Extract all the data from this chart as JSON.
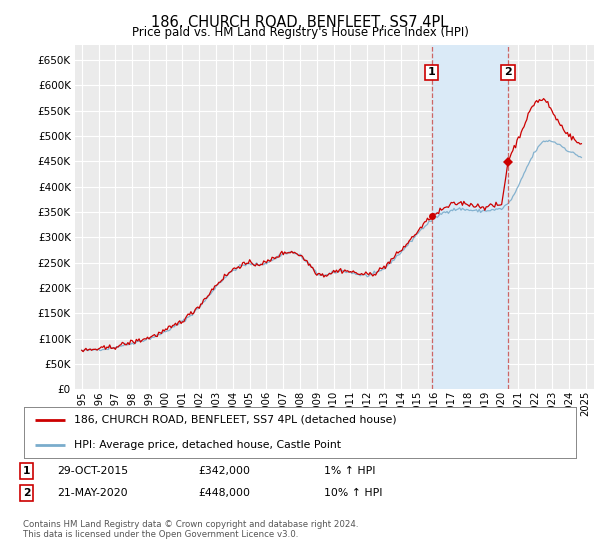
{
  "title": "186, CHURCH ROAD, BENFLEET, SS7 4PL",
  "subtitle": "Price paid vs. HM Land Registry's House Price Index (HPI)",
  "legend_label_red": "186, CHURCH ROAD, BENFLEET, SS7 4PL (detached house)",
  "legend_label_blue": "HPI: Average price, detached house, Castle Point",
  "annotation1_label": "1",
  "annotation1_date": "29-OCT-2015",
  "annotation1_price": "£342,000",
  "annotation1_hpi": "1% ↑ HPI",
  "annotation1_year": 2015.833,
  "annotation1_value": 342000,
  "annotation2_label": "2",
  "annotation2_date": "21-MAY-2020",
  "annotation2_price": "£448,000",
  "annotation2_hpi": "10% ↑ HPI",
  "annotation2_year": 2020.375,
  "annotation2_value": 448000,
  "footer": "Contains HM Land Registry data © Crown copyright and database right 2024.\nThis data is licensed under the Open Government Licence v3.0.",
  "ylim": [
    0,
    680000
  ],
  "ytick_values": [
    0,
    50000,
    100000,
    150000,
    200000,
    250000,
    300000,
    350000,
    400000,
    450000,
    500000,
    550000,
    600000,
    650000
  ],
  "background_color": "#ffffff",
  "plot_bg_color": "#ebebeb",
  "grid_color": "#ffffff",
  "shaded_region_color": "#daeaf7",
  "red_color": "#cc0000",
  "blue_color": "#7aaccc",
  "dashed_color": "#cc6666"
}
